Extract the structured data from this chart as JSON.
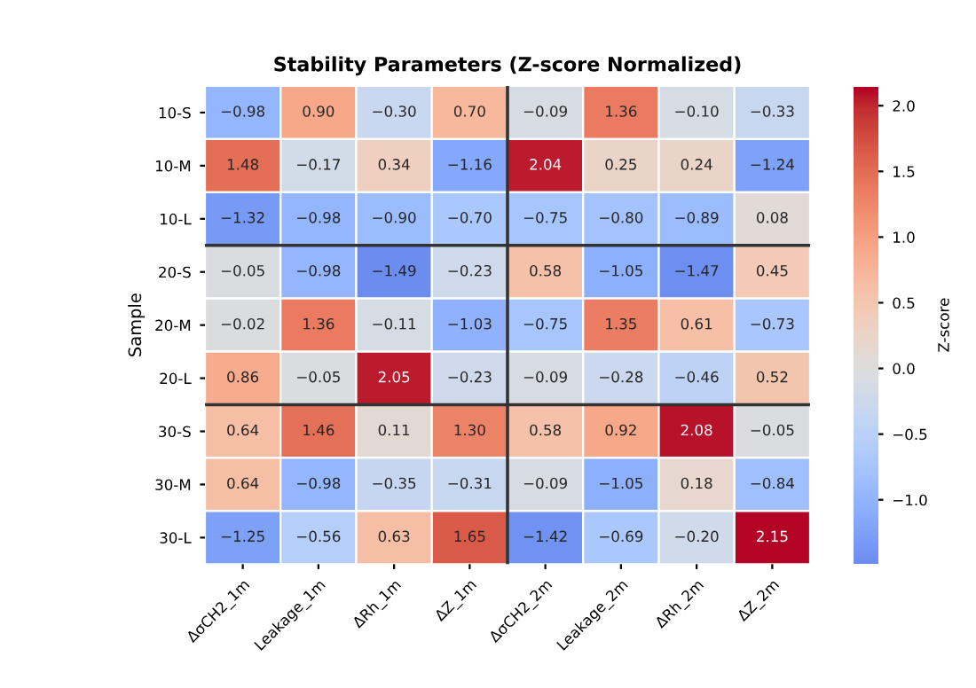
{
  "chart_data": {
    "type": "heatmap",
    "title": "Stability Parameters (Z-score Normalized)",
    "ylabel": "Sample",
    "clabel": "Z-score",
    "categories": [
      "ΔσCH2_1m",
      "Leakage_1m",
      "ΔRh_1m",
      "ΔZ_1m",
      "ΔσCH2_2m",
      "Leakage_2m",
      "ΔRh_2m",
      "ΔZ_2m"
    ],
    "y_categories": [
      "10-S",
      "10-M",
      "10-L",
      "20-S",
      "20-M",
      "20-L",
      "30-S",
      "30-M",
      "30-L"
    ],
    "cells": [
      [
        -0.98,
        0.9,
        -0.3,
        0.7,
        -0.09,
        1.36,
        -0.1,
        -0.33
      ],
      [
        1.48,
        -0.17,
        0.34,
        -1.16,
        2.04,
        0.25,
        0.24,
        -1.24
      ],
      [
        -1.32,
        -0.98,
        -0.9,
        -0.7,
        -0.75,
        -0.8,
        -0.89,
        0.08
      ],
      [
        -0.05,
        -0.98,
        -1.49,
        -0.23,
        0.58,
        -1.05,
        -1.47,
        0.45
      ],
      [
        -0.02,
        1.36,
        -0.11,
        -1.03,
        -0.75,
        1.35,
        0.61,
        -0.73
      ],
      [
        0.86,
        -0.05,
        2.05,
        -0.23,
        -0.09,
        -0.28,
        -0.46,
        0.52
      ],
      [
        0.64,
        1.46,
        0.11,
        1.3,
        0.58,
        0.92,
        2.08,
        -0.05
      ],
      [
        0.64,
        -0.98,
        -0.35,
        -0.31,
        -0.09,
        -1.05,
        0.18,
        -0.84
      ],
      [
        -1.25,
        -0.56,
        0.63,
        1.65,
        -1.42,
        -0.69,
        -0.2,
        2.15
      ]
    ],
    "cell_labels": [
      [
        "−0.98",
        "0.90",
        "−0.30",
        "0.70",
        "−0.09",
        "1.36",
        "−0.10",
        "−0.33"
      ],
      [
        "1.48",
        "−0.17",
        "0.34",
        "−1.16",
        "2.04",
        "0.25",
        "0.24",
        "−1.24"
      ],
      [
        "−1.32",
        "−0.98",
        "−0.90",
        "−0.70",
        "−0.75",
        "−0.80",
        "−0.89",
        "0.08"
      ],
      [
        "−0.05",
        "−0.98",
        "−1.49",
        "−0.23",
        "0.58",
        "−1.05",
        "−1.47",
        "0.45"
      ],
      [
        "−0.02",
        "1.36",
        "−0.11",
        "−1.03",
        "−0.75",
        "1.35",
        "0.61",
        "−0.73"
      ],
      [
        "0.86",
        "−0.05",
        "2.05",
        "−0.23",
        "−0.09",
        "−0.28",
        "−0.46",
        "0.52"
      ],
      [
        "0.64",
        "1.46",
        "0.11",
        "1.30",
        "0.58",
        "0.92",
        "2.08",
        "−0.05"
      ],
      [
        "0.64",
        "−0.98",
        "−0.35",
        "−0.31",
        "−0.09",
        "−1.05",
        "0.18",
        "−0.84"
      ],
      [
        "−1.25",
        "−0.56",
        "0.63",
        "1.65",
        "−1.42",
        "−0.69",
        "−0.20",
        "2.15"
      ]
    ],
    "clim": [
      -1.49,
      2.15
    ],
    "cticks": [
      {
        "value": -1.0,
        "label": "−1.0"
      },
      {
        "value": -0.5,
        "label": "−0.5"
      },
      {
        "value": 0.0,
        "label": "0.0"
      },
      {
        "value": 0.5,
        "label": "0.5"
      },
      {
        "value": 1.0,
        "label": "1.0"
      },
      {
        "value": 1.5,
        "label": "1.5"
      },
      {
        "value": 2.0,
        "label": "2.0"
      }
    ]
  }
}
